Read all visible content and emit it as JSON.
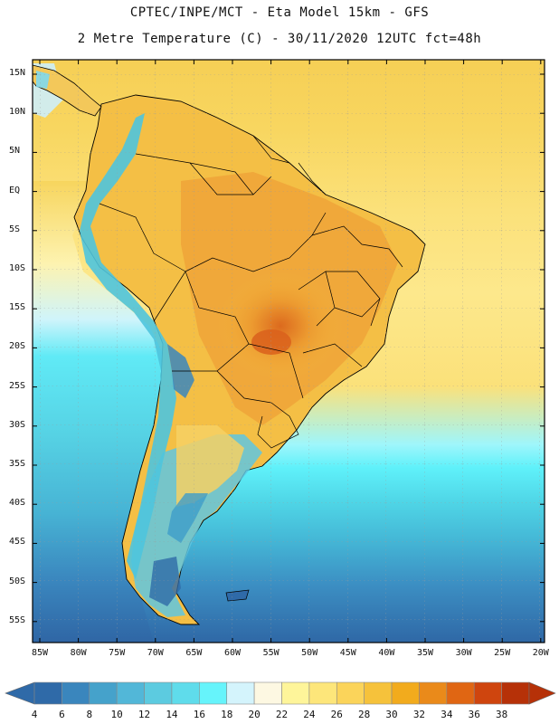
{
  "title": {
    "line1": "CPTEC/INPE/MCT -  Eta Model 15km - GFS",
    "line2": "2 Metre Temperature (C) - 30/11/2020 12UTC fct=48h"
  },
  "map": {
    "lat_labels": [
      "15N",
      "10N",
      "5N",
      "EQ",
      "5S",
      "10S",
      "15S",
      "20S",
      "25S",
      "30S",
      "35S",
      "40S",
      "45S",
      "50S",
      "55S"
    ],
    "lon_labels": [
      "85W",
      "80W",
      "75W",
      "70W",
      "65W",
      "60W",
      "55W",
      "50W",
      "45W",
      "40W",
      "35W",
      "30W",
      "25W",
      "20W"
    ]
  },
  "colorbar": {
    "levels": [
      "4",
      "6",
      "8",
      "10",
      "12",
      "14",
      "16",
      "18",
      "20",
      "22",
      "24",
      "26",
      "28",
      "30",
      "32",
      "34",
      "36",
      "38"
    ],
    "colors": [
      "#2f6aa8",
      "#3a86bd",
      "#45a2cb",
      "#52b7d8",
      "#5ccbe0",
      "#5fdceb",
      "#66f4fb",
      "#d4f4fc",
      "#fdf8e2",
      "#fef59a",
      "#fde67a",
      "#fbd45a",
      "#f6c23b",
      "#f2ab1d",
      "#ea8a1a",
      "#e06613",
      "#cf450e",
      "#b63108"
    ]
  }
}
